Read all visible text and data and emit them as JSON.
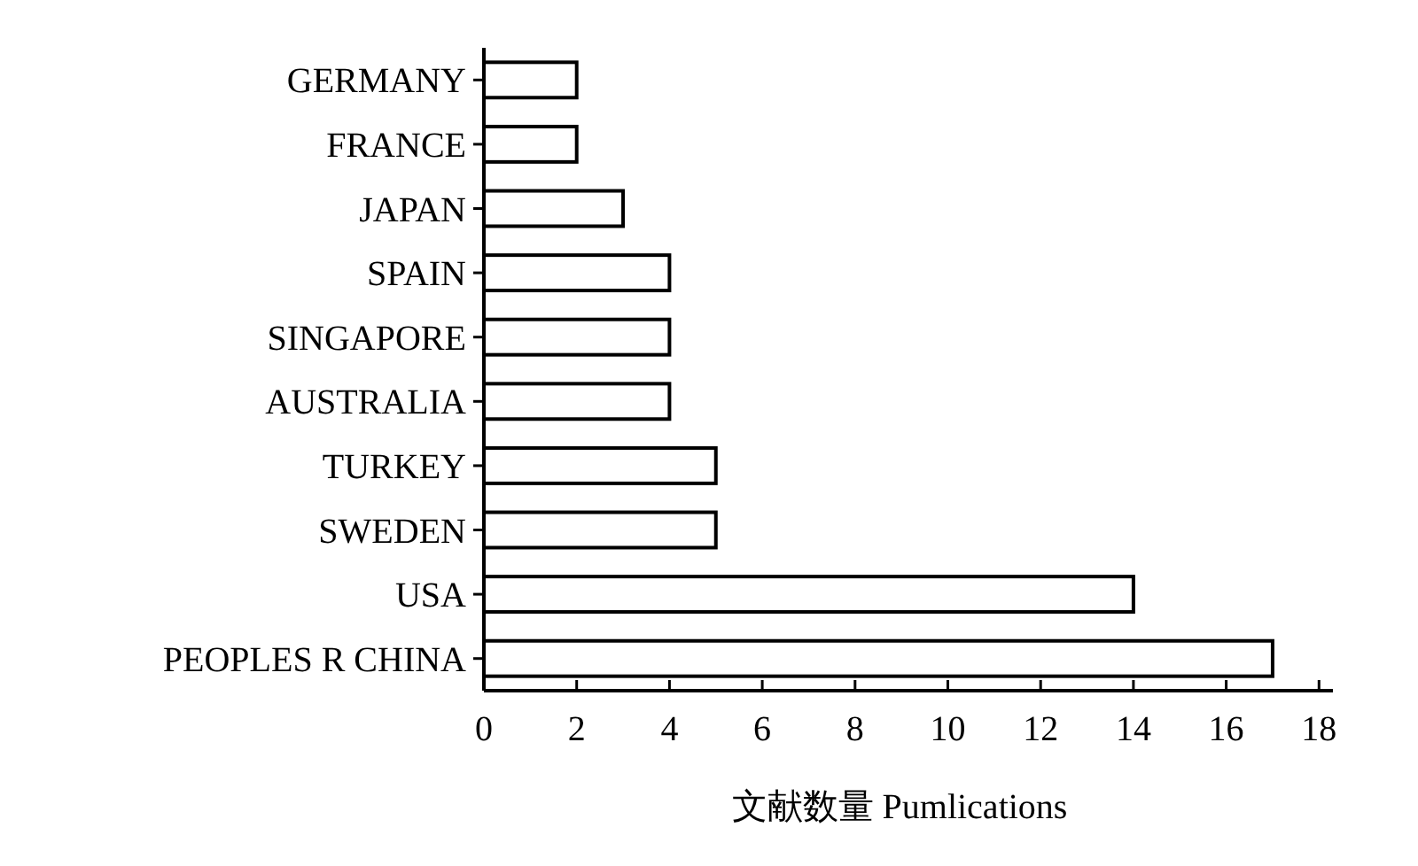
{
  "chart_data": {
    "type": "bar",
    "orientation": "horizontal",
    "xlabel": "文献数量 Pumlications",
    "categories": [
      "GERMANY",
      "FRANCE",
      "JAPAN",
      "SPAIN",
      "SINGAPORE",
      "AUSTRALIA",
      "TURKEY",
      "SWEDEN",
      "USA",
      "PEOPLES R CHINA"
    ],
    "values": [
      2,
      2,
      3,
      4,
      4,
      4,
      5,
      5,
      14,
      17
    ],
    "color": "#ffffff",
    "xlim": [
      0,
      18.3
    ],
    "xticks": [
      0,
      2,
      4,
      6,
      8,
      10,
      12,
      14,
      16,
      18
    ],
    "grid": false
  }
}
